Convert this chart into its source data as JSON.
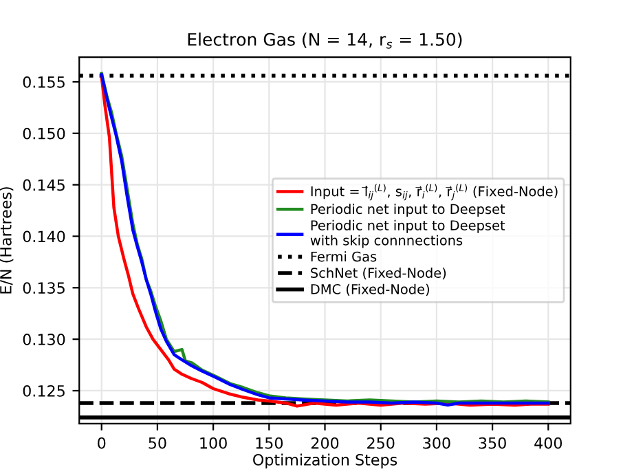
{
  "chart_data": {
    "type": "line",
    "title": "Electron Gas (N = 14, r$_{s}$ = 1.50)",
    "xlabel": "Optimization Steps",
    "ylabel": "E/N (Hartrees)",
    "xlim": [
      -20,
      420
    ],
    "ylim": [
      0.1218,
      0.1574
    ],
    "xticks": [
      0,
      50,
      100,
      150,
      200,
      250,
      300,
      350,
      400
    ],
    "yticks": [
      {
        "value": 0.125,
        "label": "0.125"
      },
      {
        "value": 0.13,
        "label": "0.130"
      },
      {
        "value": 0.135,
        "label": "0.135"
      },
      {
        "value": 0.14,
        "label": "0.140"
      },
      {
        "value": 0.145,
        "label": "0.145"
      },
      {
        "value": 0.15,
        "label": "0.150"
      },
      {
        "value": 0.155,
        "label": "0.155"
      }
    ],
    "grid": true,
    "legend": "center right",
    "line_style": "solid",
    "marker": "none",
    "series": [
      {
        "name": "Input = l⃗$_{ij}$$^{(L)}$, s$_{ij}$, r⃗$_{i}$$^{(L)}$, r⃗$_{j}$$^{(L)}$ (Fixed-Node)",
        "color": "#ff0000",
        "x": [
          0,
          3,
          7,
          11,
          15,
          20,
          24,
          28,
          33,
          40,
          46,
          53,
          60,
          65,
          72,
          80,
          90,
          100,
          114,
          125,
          140,
          150,
          165,
          175,
          190,
          210,
          230,
          250,
          270,
          290,
          310,
          330,
          350,
          370,
          385,
          400
        ],
        "values": [
          0.1555,
          0.1527,
          0.1496,
          0.1428,
          0.14,
          0.1378,
          0.1362,
          0.1344,
          0.133,
          0.1312,
          0.13,
          0.129,
          0.128,
          0.1271,
          0.1266,
          0.1262,
          0.1258,
          0.1252,
          0.1247,
          0.1244,
          0.1241,
          0.124,
          0.1238,
          0.1235,
          0.1238,
          0.1236,
          0.1238,
          0.1236,
          0.1238,
          0.1237,
          0.1238,
          0.1236,
          0.1237,
          0.1236,
          0.1237,
          0.1237
        ]
      },
      {
        "name": "Periodic net input to Deepset",
        "color": "#228b22",
        "x": [
          0,
          5,
          9,
          13,
          18,
          23,
          28,
          32,
          36,
          40,
          44,
          48,
          53,
          58,
          65,
          72,
          75,
          81,
          90,
          102,
          115,
          127,
          140,
          150,
          165,
          180,
          200,
          220,
          240,
          260,
          280,
          300,
          320,
          340,
          360,
          380,
          400
        ],
        "values": [
          0.1558,
          0.1535,
          0.152,
          0.15,
          0.1478,
          0.1445,
          0.1412,
          0.1392,
          0.1378,
          0.1358,
          0.1347,
          0.1333,
          0.1318,
          0.13,
          0.1288,
          0.129,
          0.1279,
          0.1277,
          0.127,
          0.1264,
          0.1257,
          0.1253,
          0.1248,
          0.1245,
          0.1243,
          0.1242,
          0.1241,
          0.124,
          0.1241,
          0.124,
          0.1239,
          0.124,
          0.1239,
          0.124,
          0.1239,
          0.124,
          0.1239
        ]
      },
      {
        "name": "Periodic net input to Deepset\nwith skip connnections",
        "color": "#0000ff",
        "x": [
          0,
          5,
          9,
          13,
          18,
          23,
          28,
          32,
          36,
          40,
          44,
          48,
          53,
          58,
          65,
          72,
          81,
          90,
          102,
          115,
          127,
          140,
          150,
          165,
          180,
          200,
          220,
          240,
          260,
          280,
          300,
          310,
          320,
          340,
          360,
          380,
          400
        ],
        "values": [
          0.1557,
          0.1533,
          0.1515,
          0.1498,
          0.1473,
          0.1438,
          0.1406,
          0.139,
          0.1375,
          0.1358,
          0.1344,
          0.1328,
          0.131,
          0.1298,
          0.1285,
          0.128,
          0.1274,
          0.1269,
          0.1263,
          0.1256,
          0.1251,
          0.1246,
          0.1243,
          0.1242,
          0.1241,
          0.124,
          0.1239,
          0.1239,
          0.1238,
          0.1239,
          0.1238,
          0.1236,
          0.1238,
          0.1238,
          0.1238,
          0.1238,
          0.1238
        ]
      }
    ],
    "ref_lines": [
      {
        "axis": "y",
        "value": 0.1556,
        "label": "Fermi Gas",
        "color": "#000000",
        "line_style": "dotted"
      },
      {
        "axis": "y",
        "value": 0.1238,
        "label": "SchNet (Fixed-Node)",
        "color": "#000000",
        "line_style": "dashed"
      },
      {
        "axis": "y",
        "value": 0.1224,
        "label": "DMC (Fixed-Node)",
        "color": "#000000",
        "line_style": "solid"
      }
    ]
  }
}
